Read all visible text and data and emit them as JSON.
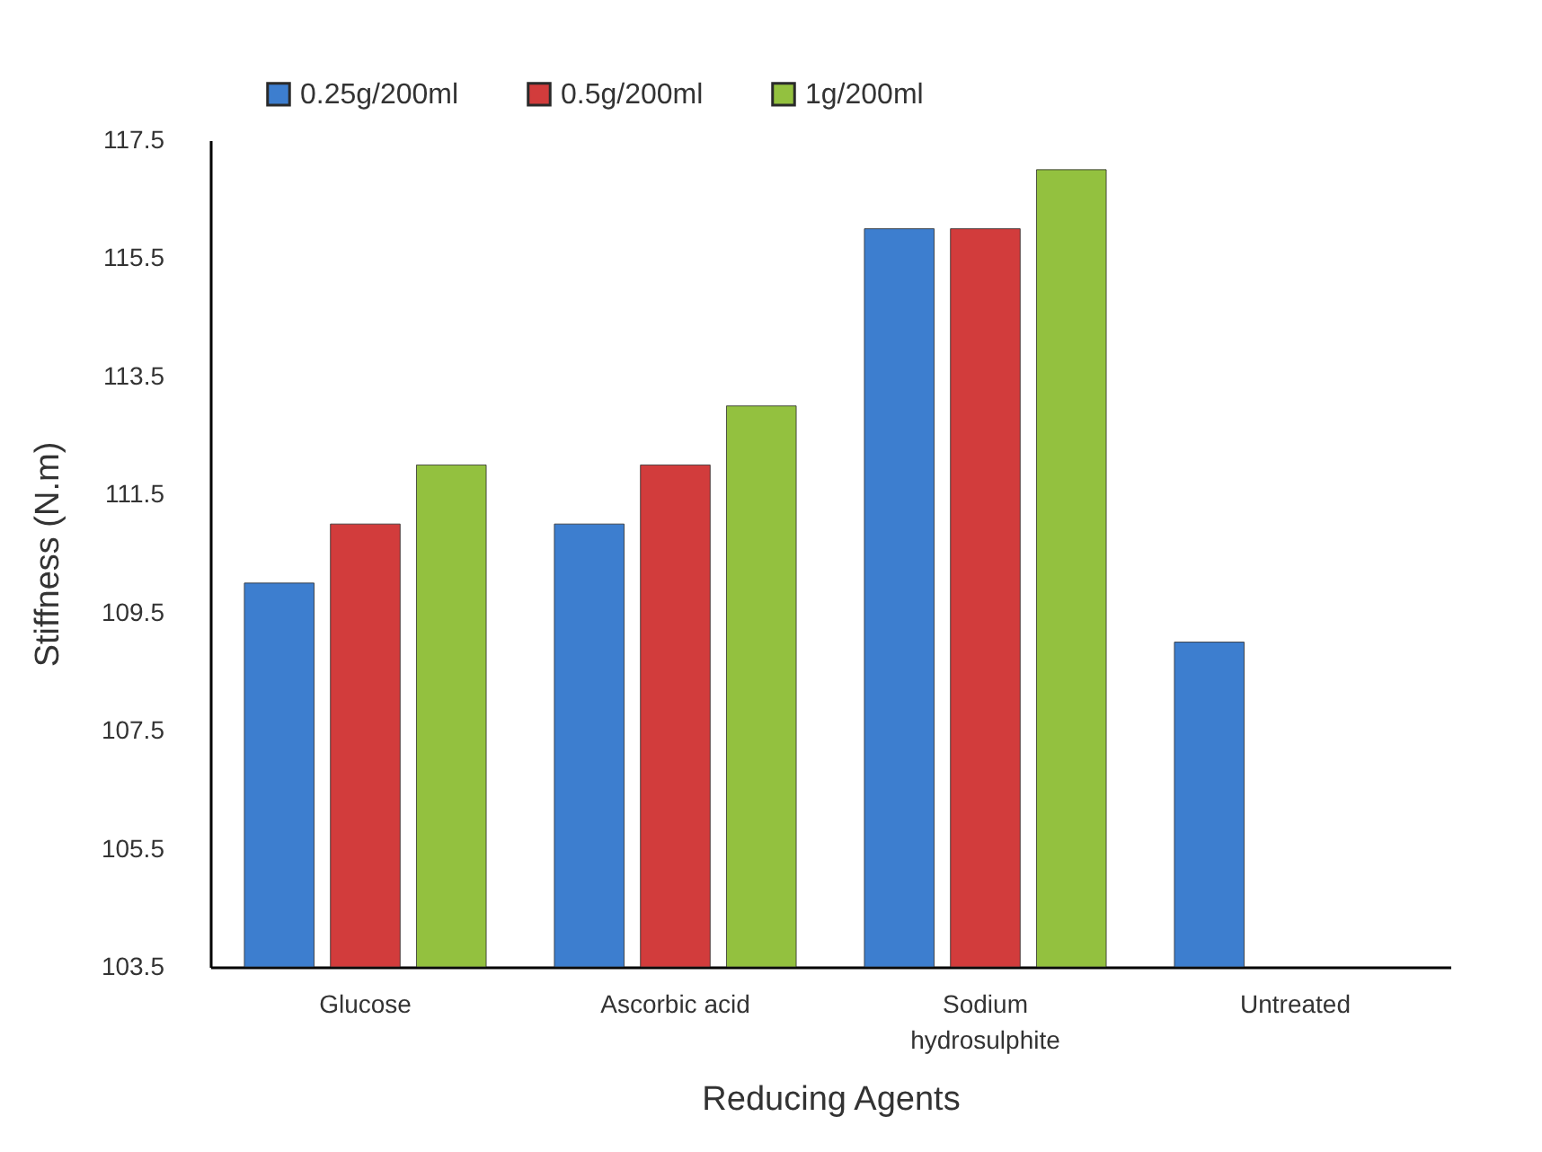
{
  "chart_data": {
    "type": "bar",
    "xlabel": "Reducing Agents",
    "ylabel": "Stiffness (N.m)",
    "categories": [
      "Glucose",
      "Ascorbic acid",
      "Sodium hydrosulphite",
      "Untreated"
    ],
    "series": [
      {
        "name": "0.25g/200ml",
        "color": "#3d7ecf",
        "values": [
          110,
          111,
          116,
          109
        ]
      },
      {
        "name": "0.5g/200ml",
        "color": "#d23c3c",
        "values": [
          111,
          112,
          116,
          null
        ]
      },
      {
        "name": "1g/200ml",
        "color": "#93c13f",
        "values": [
          112,
          113,
          117,
          null
        ]
      }
    ],
    "ylim": [
      103.5,
      117.5
    ],
    "yticks": [
      103.5,
      105.5,
      107.5,
      109.5,
      111.5,
      113.5,
      115.5,
      117.5
    ],
    "legend": "top left"
  }
}
